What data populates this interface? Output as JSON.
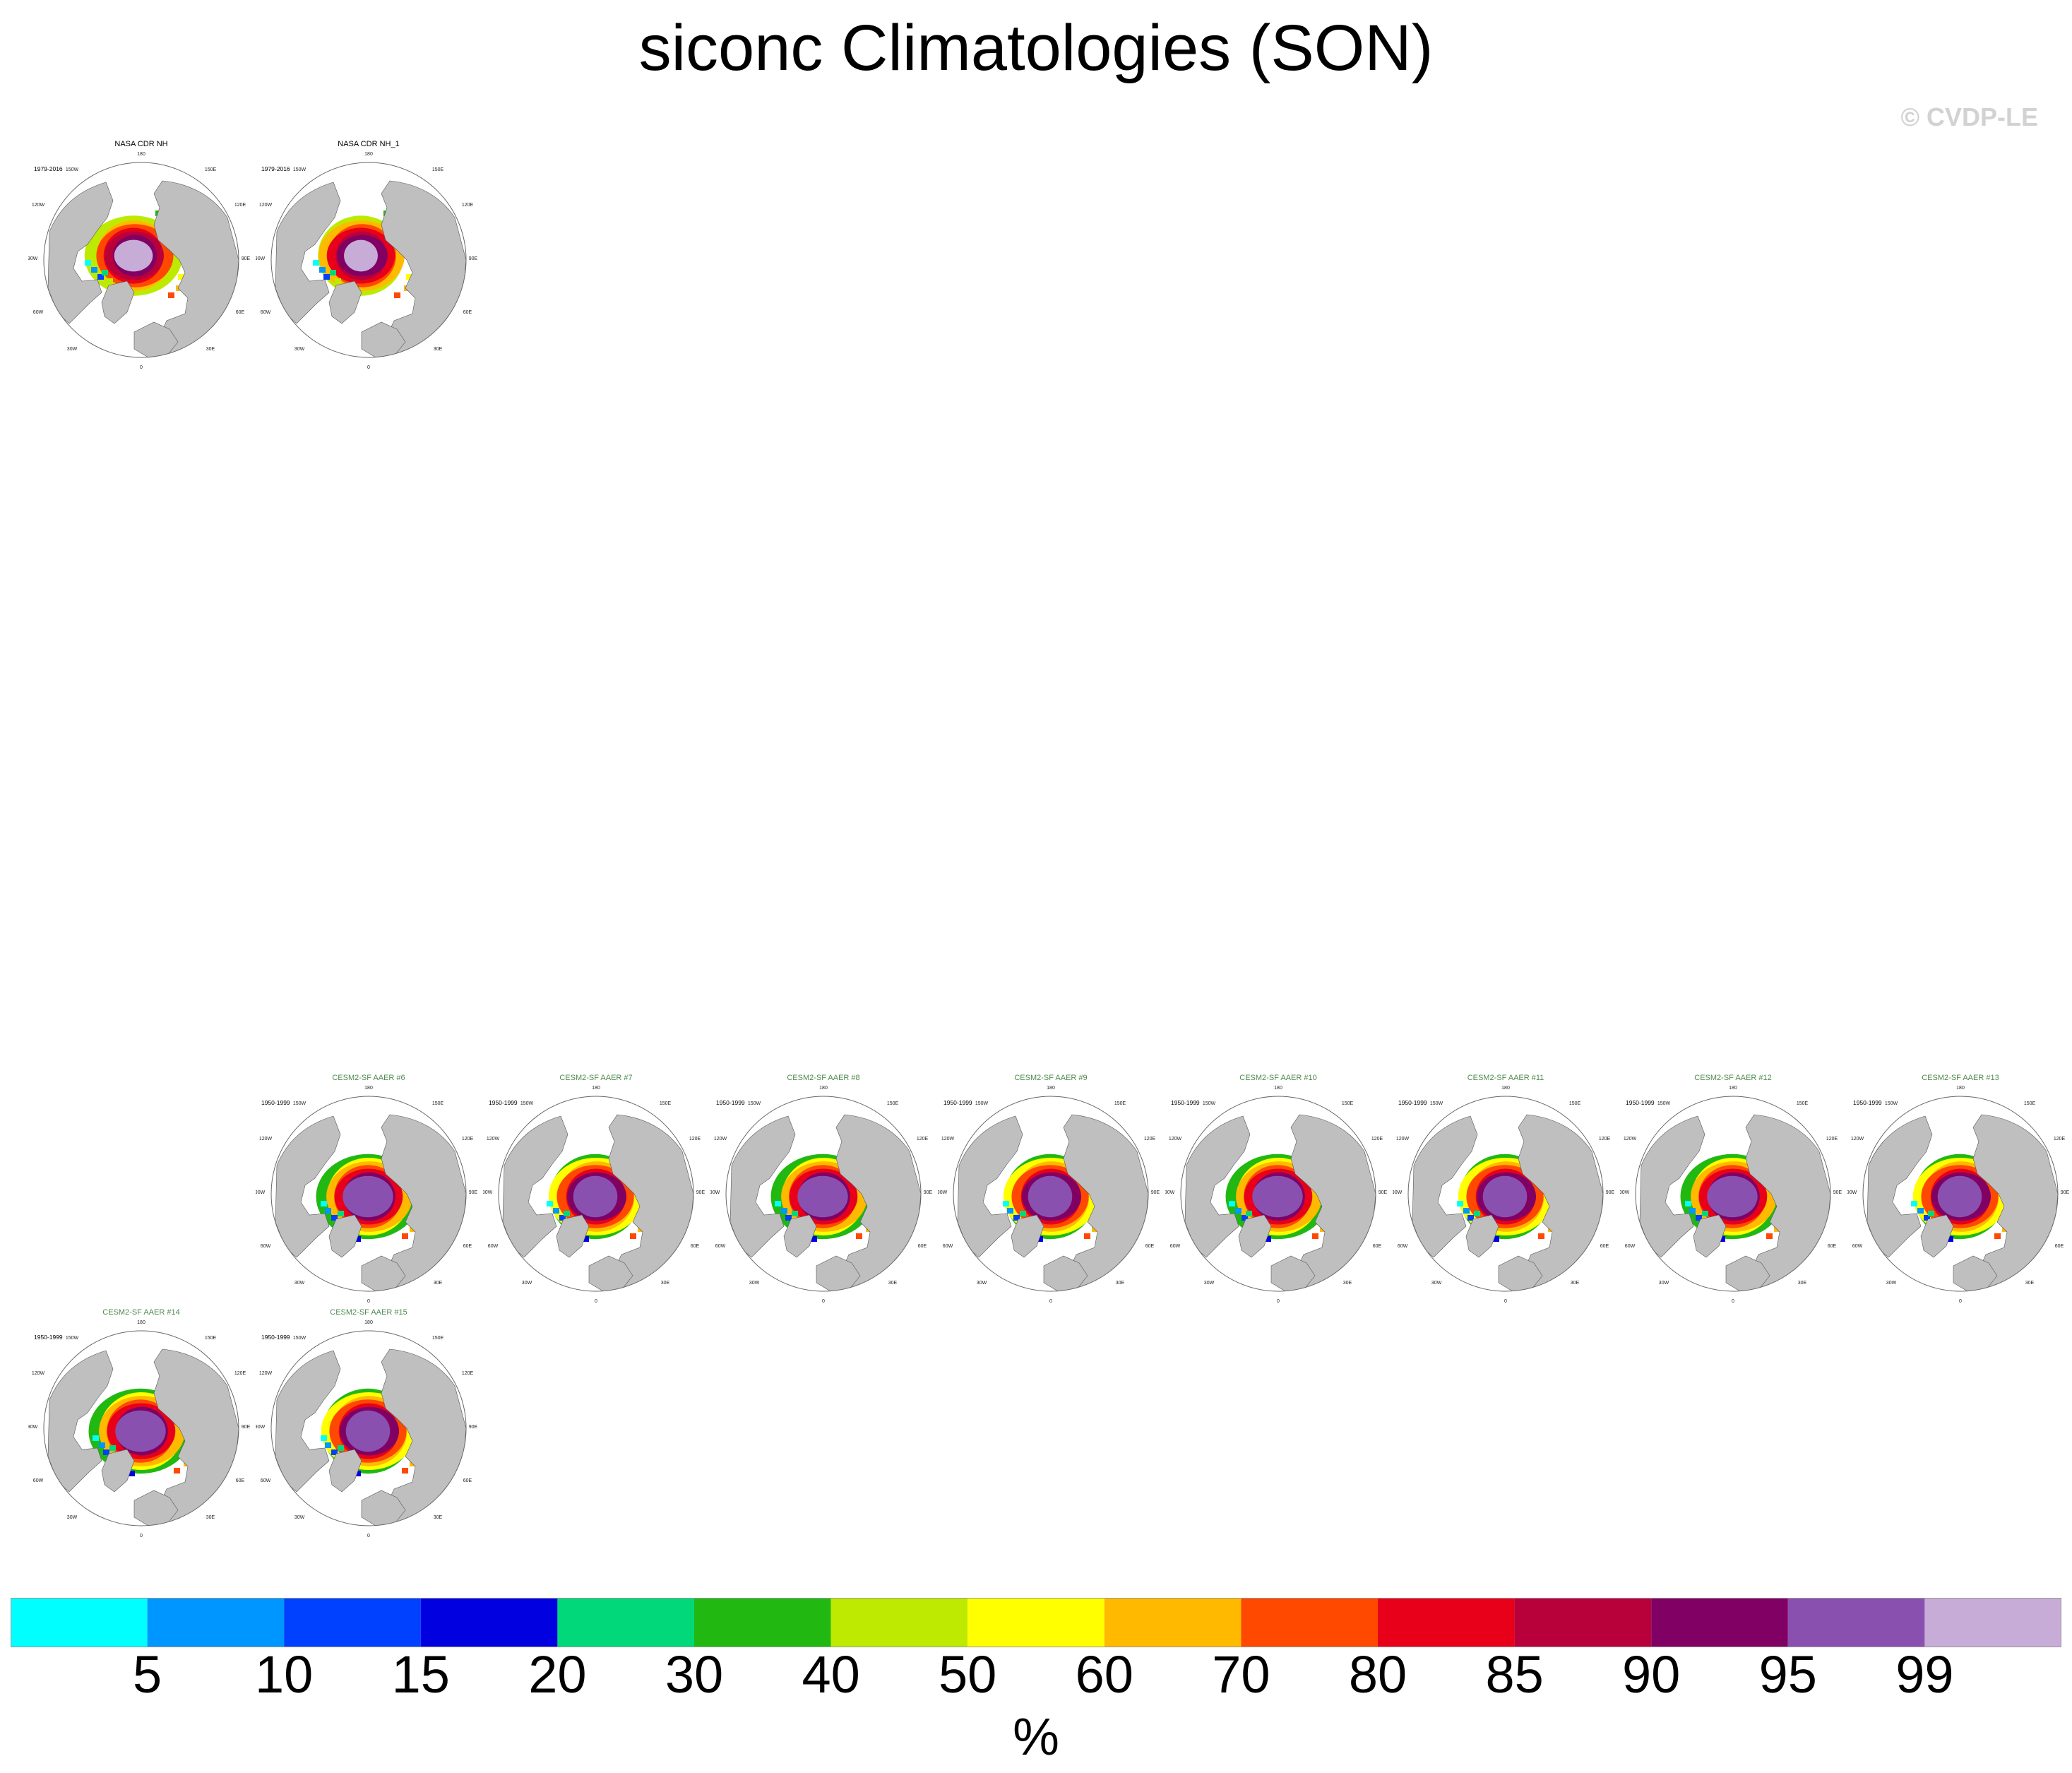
{
  "title": "siconc Climatologies (SON)",
  "copyright": "© CVDP-LE",
  "units": "%",
  "colors": {
    "land": "#bfbfbf",
    "ocean": "#ffffff",
    "coast": "#555555",
    "observed_title": "#000000",
    "model_title": "#4f8a4f"
  },
  "colorbar": {
    "colors": [
      "#00ffff",
      "#0096ff",
      "#0040ff",
      "#0000e0",
      "#00d87a",
      "#22b812",
      "#bdea00",
      "#ffff00",
      "#ffba00",
      "#ff4800",
      "#e8001a",
      "#b8003a",
      "#800064",
      "#8a50b0",
      "#c8acd8"
    ],
    "labels": [
      "5",
      "10",
      "15",
      "20",
      "30",
      "40",
      "50",
      "60",
      "70",
      "80",
      "85",
      "90",
      "95",
      "99"
    ]
  },
  "panels": [
    {
      "title": "NASA CDR NH",
      "period": "1979-2016",
      "kind": "observed"
    },
    {
      "title": "NASA CDR NH_1",
      "period": "1979-2016",
      "kind": "observed"
    },
    {
      "title": "CESM2-SF AAER #6",
      "period": "1950-1999",
      "kind": "model"
    },
    {
      "title": "CESM2-SF AAER #7",
      "period": "1950-1999",
      "kind": "model"
    },
    {
      "title": "CESM2-SF AAER #8",
      "period": "1950-1999",
      "kind": "model"
    },
    {
      "title": "CESM2-SF AAER #9",
      "period": "1950-1999",
      "kind": "model"
    },
    {
      "title": "CESM2-SF AAER #10",
      "period": "1950-1999",
      "kind": "model"
    },
    {
      "title": "CESM2-SF AAER #11",
      "period": "1950-1999",
      "kind": "model"
    },
    {
      "title": "CESM2-SF AAER #12",
      "period": "1950-1999",
      "kind": "model"
    },
    {
      "title": "CESM2-SF AAER #13",
      "period": "1950-1999",
      "kind": "model"
    },
    {
      "title": "CESM2-SF AAER #14",
      "period": "1950-1999",
      "kind": "model"
    },
    {
      "title": "CESM2-SF AAER #15",
      "period": "1950-1999",
      "kind": "model"
    }
  ],
  "map_labels": {
    "top": "180",
    "bottom": "0",
    "left_upper": "150W",
    "left_mid_upper": "120W",
    "left_mid": "90W",
    "left_mid_lower": "60W",
    "left_lower": "30W",
    "right_upper": "150E",
    "right_mid_upper": "120E",
    "right_mid": "90E",
    "right_mid_lower": "60E",
    "right_lower": "30E"
  }
}
